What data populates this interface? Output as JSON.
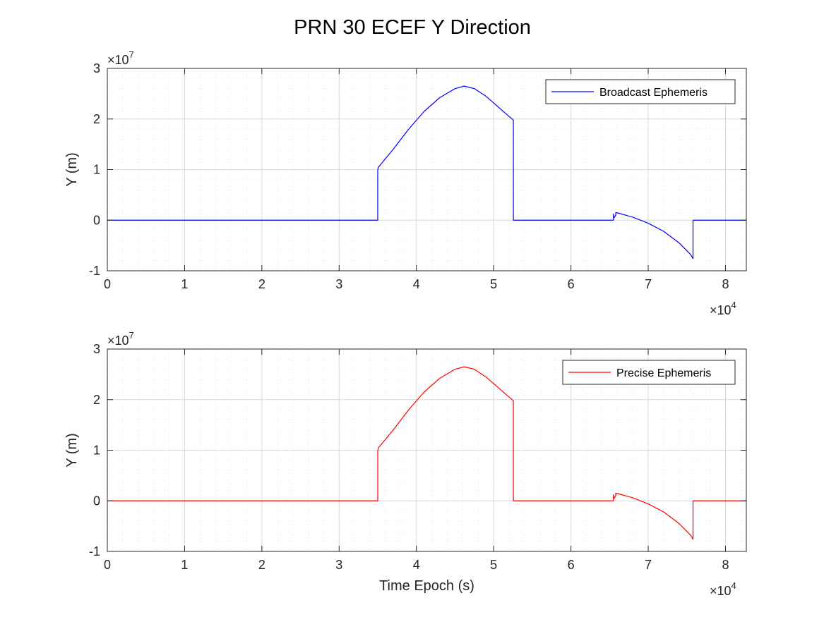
{
  "figure": {
    "title": "PRN 30 ECEF Y Direction"
  },
  "colors": {
    "broadcast": "#0000ff",
    "precise": "#ff0000",
    "axis": "#262626",
    "grid_major": "#d9d9d9",
    "grid_minor": "#e8e8e8"
  },
  "chart_data": [
    {
      "type": "line",
      "title": "",
      "xlabel": "",
      "ylabel": "Y (m)",
      "x_exponent_label": "×10",
      "x_exponent_power": "4",
      "y_exponent_label": "×10",
      "y_exponent_power": "7",
      "xlim": [
        0,
        8.27
      ],
      "ylim": [
        -1,
        3
      ],
      "x_ticks": [
        0,
        1,
        2,
        3,
        4,
        5,
        6,
        7,
        8
      ],
      "x_tick_labels": [
        "0",
        "1",
        "2",
        "3",
        "4",
        "5",
        "6",
        "7",
        "8"
      ],
      "y_ticks": [
        -1,
        0,
        1,
        2,
        3
      ],
      "y_tick_labels": [
        "-1",
        "0",
        "1",
        "2",
        "3"
      ],
      "grid": true,
      "minor_grid": true,
      "legend_position": "top-right",
      "series": [
        {
          "name": "Broadcast Ephemeris",
          "color": "#0000ff",
          "x": [
            0,
            3.5,
            3.5,
            3.51,
            3.7,
            3.9,
            4.1,
            4.3,
            4.5,
            4.62,
            4.75,
            4.9,
            5.05,
            5.2,
            5.255,
            5.255,
            5.26,
            6.55,
            6.55,
            6.56,
            6.58,
            6.58,
            6.59,
            6.8,
            7.0,
            7.2,
            7.4,
            7.55,
            7.58,
            7.58,
            7.6,
            8.27
          ],
          "y": [
            0,
            0,
            1.0,
            1.05,
            1.4,
            1.8,
            2.15,
            2.42,
            2.6,
            2.65,
            2.6,
            2.45,
            2.25,
            2.05,
            1.98,
            0,
            0,
            0,
            0.12,
            0.05,
            0.1,
            0.15,
            0.15,
            0.06,
            -0.06,
            -0.22,
            -0.45,
            -0.68,
            -0.76,
            0,
            0,
            0
          ]
        }
      ]
    },
    {
      "type": "line",
      "title": "",
      "xlabel": "Time Epoch (s)",
      "ylabel": "Y (m)",
      "x_exponent_label": "×10",
      "x_exponent_power": "4",
      "y_exponent_label": "×10",
      "y_exponent_power": "7",
      "xlim": [
        0,
        8.27
      ],
      "ylim": [
        -1,
        3
      ],
      "x_ticks": [
        0,
        1,
        2,
        3,
        4,
        5,
        6,
        7,
        8
      ],
      "x_tick_labels": [
        "0",
        "1",
        "2",
        "3",
        "4",
        "5",
        "6",
        "7",
        "8"
      ],
      "y_ticks": [
        -1,
        0,
        1,
        2,
        3
      ],
      "y_tick_labels": [
        "-1",
        "0",
        "1",
        "2",
        "3"
      ],
      "grid": true,
      "minor_grid": true,
      "legend_position": "top-right",
      "series": [
        {
          "name": "Precise Ephemeris",
          "color": "#ff0000",
          "x": [
            0,
            3.5,
            3.5,
            3.51,
            3.7,
            3.9,
            4.1,
            4.3,
            4.5,
            4.62,
            4.75,
            4.9,
            5.05,
            5.2,
            5.255,
            5.255,
            5.26,
            6.55,
            6.55,
            6.56,
            6.58,
            6.58,
            6.59,
            6.8,
            7.0,
            7.2,
            7.4,
            7.55,
            7.58,
            7.58,
            7.6,
            8.27
          ],
          "y": [
            0,
            0,
            1.0,
            1.05,
            1.4,
            1.8,
            2.15,
            2.42,
            2.6,
            2.65,
            2.6,
            2.45,
            2.25,
            2.05,
            1.98,
            0,
            0,
            0,
            0.12,
            0.05,
            0.1,
            0.15,
            0.15,
            0.06,
            -0.06,
            -0.22,
            -0.45,
            -0.68,
            -0.76,
            0,
            0,
            0
          ]
        }
      ]
    }
  ]
}
